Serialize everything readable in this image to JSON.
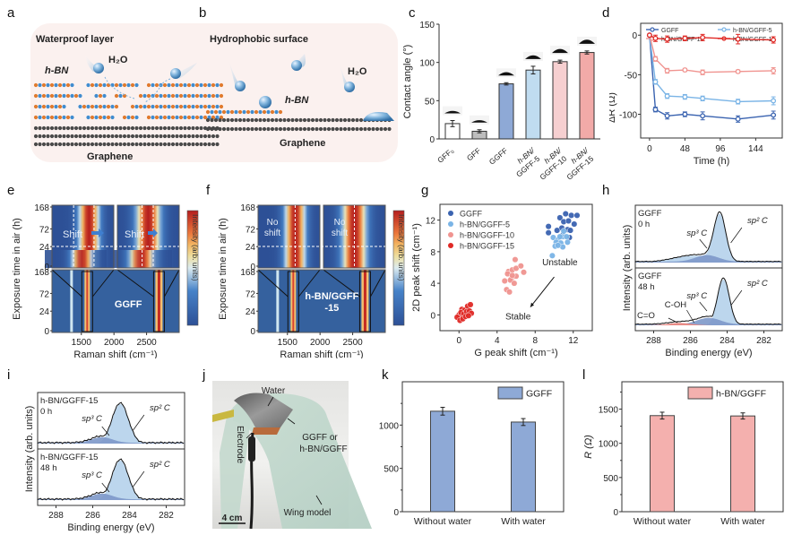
{
  "panel_letters": [
    "a",
    "b",
    "c",
    "d",
    "e",
    "f",
    "g",
    "h",
    "i",
    "j",
    "k",
    "l"
  ],
  "colors": {
    "ggff": "#3a63b0",
    "hbn5": "#7ab4e6",
    "hbn10": "#f09490",
    "hbn15": "#e02a26",
    "hbn_orange": "#e07a2e",
    "hbn_blue": "#3f8ccf",
    "graphene": "#4a4a4a",
    "pink_bar": "#f4b0ae",
    "blue_bar": "#8ea9d6"
  },
  "schematic_a": {
    "title": "Waterproof layer",
    "h2o": "H₂O",
    "hbn": "h-BN",
    "graphene": "Graphene"
  },
  "schematic_b": {
    "title": "Hydrophobic surface",
    "h2o": "H₂O",
    "hbn": "h-BN",
    "graphene": "Graphene"
  },
  "photo_j": {
    "water": "Water",
    "electrode": "Electrode",
    "film": "GGFF or",
    "film2": "h-BN/GGFF",
    "wing": "Wing model",
    "scale": "4 cm"
  },
  "chart_data": [
    {
      "id": "c",
      "type": "bar",
      "title": "",
      "xlabel": "",
      "ylabel": "Contact angle (°)",
      "ylim": [
        0,
        150
      ],
      "yticks": [
        0,
        50,
        100,
        150
      ],
      "categories": [
        "GFF₀",
        "GFF",
        "GGFF",
        "h-BN/ GGFF-5",
        "h-BN/ GGFF-10",
        "h-BN/ GGFF-15"
      ],
      "values": [
        20,
        10,
        72,
        90,
        101,
        113
      ],
      "errors": [
        4,
        2,
        1.5,
        5,
        2,
        2
      ],
      "bar_colors": [
        "#ffffff",
        "#bdbdbd",
        "#8ea9d6",
        "#c0dcf0",
        "#f6cfd0",
        "#f2aaa8"
      ]
    },
    {
      "id": "d",
      "type": "line",
      "xlabel": "Time (h)",
      "ylabel": "ΔR (Ω)",
      "xlim": [
        -12,
        180
      ],
      "ylim": [
        -130,
        15
      ],
      "xticks": [
        0,
        48,
        96,
        144
      ],
      "yticks": [
        0,
        -50,
        -100
      ],
      "legend": "top",
      "x": [
        0,
        8,
        24,
        48,
        72,
        120,
        168
      ],
      "series": [
        {
          "name": "GGFF",
          "values": [
            0,
            -94,
            -102,
            -100,
            -102,
            -106,
            -101
          ],
          "errors": [
            0,
            3,
            4,
            3,
            5,
            4,
            5
          ],
          "color": "#3a63b0"
        },
        {
          "name": "h-BN/GGFF-5",
          "values": [
            0,
            -59,
            -77,
            -78,
            -80,
            -84,
            -83
          ],
          "errors": [
            0,
            3,
            3,
            3,
            3,
            3,
            5
          ],
          "color": "#7ab4e6"
        },
        {
          "name": "h-BN/GGFF-10",
          "values": [
            0,
            -30,
            -45,
            -44,
            -47,
            -46,
            -45
          ],
          "errors": [
            0,
            3,
            3,
            2,
            3,
            2,
            4
          ],
          "color": "#f09490"
        },
        {
          "name": "h-BN/GGFF-15",
          "values": [
            0,
            -4,
            -5,
            -4,
            -3,
            -5,
            -6
          ],
          "errors": [
            0,
            4,
            4,
            3,
            4,
            6,
            4
          ],
          "color": "#e02a26"
        }
      ]
    },
    {
      "id": "e",
      "type": "heatmap",
      "sample": "GGFF",
      "xlabel": "Raman shift (cm⁻¹)",
      "ylabel": "Exposure time in air (h)",
      "xticks": [
        1500,
        2000,
        2500
      ],
      "yticks": [
        "0",
        "24",
        "72",
        "168"
      ],
      "colorbar_label": "Intensity (arb. units)",
      "annotations": [
        "Shift",
        "Shift"
      ],
      "peaks": [
        1350,
        1590,
        2690
      ],
      "shifted": true
    },
    {
      "id": "f",
      "type": "heatmap",
      "sample": "h-BN/GGFF -15",
      "sample_line1": "h-BN/GGFF",
      "sample_line2": "-15",
      "xlabel": "Raman shift (cm⁻¹)",
      "ylabel": "Exposure time in air (h)",
      "xticks": [
        1500,
        2000,
        2500
      ],
      "yticks": [
        "0",
        "24",
        "72",
        "168"
      ],
      "colorbar_label": "Intensity (arb. units)",
      "annotations": [
        "No shift",
        "No shift"
      ],
      "peaks": [
        1350,
        1590,
        2690
      ],
      "shifted": false
    },
    {
      "id": "g",
      "type": "scatter",
      "xlabel": "G peak shift (cm⁻¹)",
      "ylabel": "2D peak shift (cm⁻¹)",
      "xlim": [
        -2,
        14
      ],
      "ylim": [
        -2,
        14
      ],
      "xticks": [
        0,
        4,
        8,
        12
      ],
      "yticks": [
        0,
        4,
        8,
        12
      ],
      "legend": "top-left",
      "annotations": [
        "Unstable",
        "Stable"
      ],
      "series": [
        {
          "name": "GGFF",
          "color": "#3a63b0",
          "points": [
            [
              9.4,
              11.2
            ],
            [
              9.4,
              10.4
            ],
            [
              10.6,
              12.3
            ],
            [
              11.2,
              12.8
            ],
            [
              11.8,
              12.6
            ],
            [
              12.4,
              12.6
            ],
            [
              11,
              11.8
            ],
            [
              11.5,
              11.9
            ],
            [
              12.1,
              11.5
            ],
            [
              10.8,
              11
            ],
            [
              11.4,
              10.8
            ],
            [
              11.7,
              10.7
            ],
            [
              10.3,
              10.7
            ],
            [
              10.9,
              10.1
            ],
            [
              11.6,
              9.8
            ]
          ]
        },
        {
          "name": "h-BN/GGFF-5",
          "color": "#7ab4e6",
          "points": [
            [
              9.9,
              9.8
            ],
            [
              10.4,
              9.5
            ],
            [
              10.9,
              9.9
            ],
            [
              11.3,
              9.9
            ],
            [
              10.2,
              9.2
            ],
            [
              10.7,
              9.1
            ],
            [
              11.4,
              9.2
            ],
            [
              10.1,
              8.7
            ],
            [
              10.9,
              8.6
            ],
            [
              10.4,
              8.8
            ],
            [
              11.0,
              10.6
            ],
            [
              9.8,
              7.5
            ],
            [
              10.6,
              9.9
            ]
          ]
        },
        {
          "name": "h-BN/GGFF-10",
          "color": "#f09490",
          "points": [
            [
              5.9,
              7.0
            ],
            [
              5.2,
              5.5
            ],
            [
              5.6,
              5.7
            ],
            [
              6.0,
              5.9
            ],
            [
              6.5,
              6.2
            ],
            [
              6.8,
              5.4
            ],
            [
              5.1,
              5.2
            ],
            [
              5.5,
              4.6
            ],
            [
              6.0,
              4.9
            ],
            [
              4.8,
              4.3
            ],
            [
              5.4,
              4.4
            ],
            [
              5.8,
              4.0
            ],
            [
              5.0,
              3.2
            ],
            [
              5.3,
              2.9
            ],
            [
              5.6,
              5.0
            ]
          ]
        },
        {
          "name": "h-BN/GGFF-15",
          "color": "#e02a26",
          "points": [
            [
              0.0,
              0.0
            ],
            [
              0.3,
              0.7
            ],
            [
              0.6,
              0.6
            ],
            [
              0.9,
              1.1
            ],
            [
              1.2,
              1.3
            ],
            [
              0.2,
              0.3
            ],
            [
              0.5,
              0.1
            ],
            [
              0.8,
              0.4
            ],
            [
              1.1,
              0.5
            ],
            [
              1.3,
              0.2
            ],
            [
              -0.2,
              -0.3
            ],
            [
              0.1,
              -0.7
            ],
            [
              0.4,
              -0.5
            ],
            [
              0.7,
              -0.2
            ],
            [
              1.0,
              -0.1
            ]
          ]
        }
      ]
    },
    {
      "id": "h",
      "type": "line",
      "xlabel": "Binding energy (eV)",
      "ylabel": "Intensity (arb. units)",
      "xlim": [
        289,
        281
      ],
      "xticks": [
        288,
        286,
        284,
        282
      ],
      "subplots": [
        {
          "label1": "GGFF",
          "label2": "0 h",
          "peaks": [
            "sp³ C",
            "sp² C"
          ],
          "sp2_center": 284.4,
          "sp3_center": 285.1
        },
        {
          "label1": "GGFF",
          "label2": "48 h",
          "peaks": [
            "C=O",
            "C-OH",
            "sp³ C",
            "sp² C"
          ],
          "sp2_center": 284.2,
          "sp3_center": 285.0
        }
      ]
    },
    {
      "id": "i",
      "type": "line",
      "xlabel": "Binding energy (eV)",
      "ylabel": "Intensity (arb. units)",
      "xlim": [
        289,
        281
      ],
      "xticks": [
        288,
        286,
        284,
        282
      ],
      "subplots": [
        {
          "label1": "h-BN/GGFF-15",
          "label2": "0 h",
          "peaks": [
            "sp³ C",
            "sp² C"
          ],
          "sp2_center": 284.5,
          "sp3_center": 285.5
        },
        {
          "label1": "h-BN/GGFF-15",
          "label2": "48 h",
          "peaks": [
            "sp³ C",
            "sp² C"
          ],
          "sp2_center": 284.5,
          "sp3_center": 285.5
        }
      ]
    },
    {
      "id": "k",
      "type": "bar",
      "ylabel": "R (Ω)",
      "ylim": [
        0,
        1500
      ],
      "yticks": [
        0,
        500,
        1000
      ],
      "categories": [
        "Without water",
        "With water"
      ],
      "values": [
        1160,
        1035
      ],
      "errors": [
        45,
        40
      ],
      "legend": "GGFF",
      "color": "#8ea9d6"
    },
    {
      "id": "l",
      "type": "bar",
      "ylabel": "R (Ω)",
      "ylim": [
        0,
        1900
      ],
      "yticks": [
        0,
        500,
        1000,
        1500
      ],
      "categories": [
        "Without water",
        "With water"
      ],
      "values": [
        1405,
        1400
      ],
      "errors": [
        50,
        45
      ],
      "legend": "h-BN/GGFF",
      "color": "#f4b0ae"
    }
  ]
}
